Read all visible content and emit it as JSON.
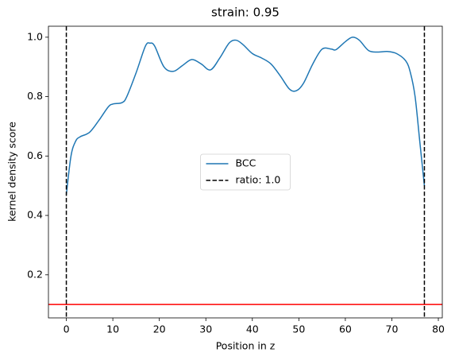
{
  "chart_data": {
    "type": "line",
    "title": "strain: 0.95",
    "xlabel": "Position in z",
    "ylabel": "kernel density score",
    "x": [
      0,
      1,
      2,
      3,
      5,
      7,
      9,
      10,
      12,
      13,
      15,
      17,
      18,
      19,
      21,
      23,
      25,
      27,
      29,
      31,
      33,
      35,
      36.5,
      38,
      40,
      42,
      44,
      46,
      48,
      49.5,
      51,
      53,
      55,
      57,
      58,
      60,
      61.5,
      63,
      65,
      67,
      69,
      71,
      73,
      74,
      75,
      76,
      77
    ],
    "series": [
      {
        "name": "BCC",
        "color": "#1f77b4",
        "values": [
          0.47,
          0.6,
          0.65,
          0.665,
          0.68,
          0.72,
          0.765,
          0.775,
          0.78,
          0.8,
          0.88,
          0.97,
          0.98,
          0.97,
          0.9,
          0.885,
          0.905,
          0.925,
          0.91,
          0.89,
          0.93,
          0.98,
          0.99,
          0.975,
          0.945,
          0.93,
          0.91,
          0.87,
          0.825,
          0.82,
          0.845,
          0.91,
          0.96,
          0.96,
          0.958,
          0.985,
          1.0,
          0.99,
          0.955,
          0.95,
          0.952,
          0.945,
          0.92,
          0.88,
          0.8,
          0.65,
          0.5
        ]
      }
    ],
    "vlines": {
      "name": "ratio: 1.0",
      "color": "#000000",
      "values": [
        0,
        77
      ]
    },
    "hline": {
      "value": 0.1,
      "color": "#ff0000"
    },
    "xlim": [
      -3.85,
      80.85
    ],
    "ylim": [
      0.055,
      1.037
    ],
    "xticks": [
      0,
      10,
      20,
      30,
      40,
      50,
      60,
      70,
      80
    ],
    "yticks": [
      0.2,
      0.4,
      0.6,
      0.8,
      {
        "value": 1,
        "label": "1.0"
      }
    ],
    "legend": "center"
  }
}
